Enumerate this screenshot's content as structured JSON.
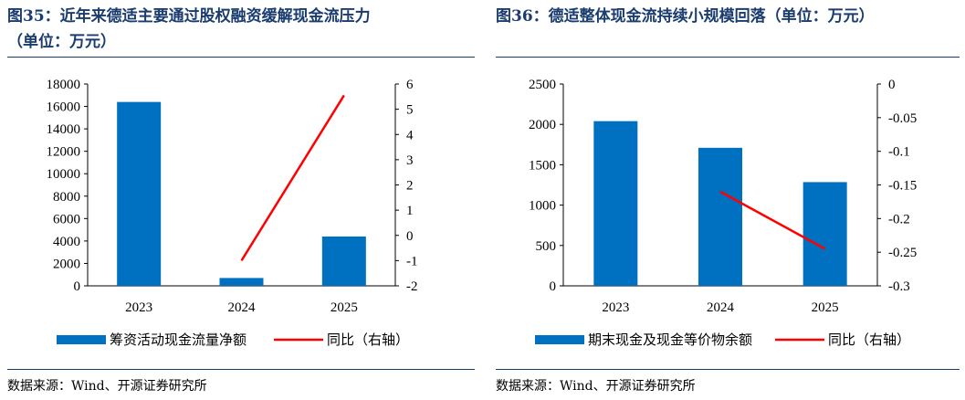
{
  "left": {
    "title_line1": "图35：近年来德适主要通过股权融资缓解现金流压力",
    "title_line2": "（单位：万元）",
    "source": "数据来源：Wind、开源证券研究所"
  },
  "right": {
    "title_line1": "图36：德适整体现金流持续小规模回落（单位：万元）",
    "source": "数据来源：Wind、开源证券研究所"
  },
  "colors": {
    "bar": "#0070c0",
    "line": "#ff0000",
    "title": "#1a3c6e"
  },
  "chart_data": [
    {
      "type": "bar",
      "categories": [
        "2023",
        "2024",
        "2025"
      ],
      "series": [
        {
          "name": "筹资活动现金流量净额",
          "type": "bar",
          "axis": "left",
          "values": [
            16400,
            700,
            4400
          ]
        },
        {
          "name": "同比（右轴）",
          "type": "line",
          "axis": "right",
          "values": [
            null,
            -1.0,
            5.55
          ]
        }
      ],
      "ylim": [
        0,
        18000
      ],
      "yticks": [
        "0",
        "2000",
        "4000",
        "6000",
        "8000",
        "10000",
        "12000",
        "14000",
        "16000",
        "18000"
      ],
      "y2lim": [
        -2,
        6
      ],
      "y2ticks": [
        "-2",
        "-1",
        "0",
        "1",
        "2",
        "3",
        "4",
        "5",
        "6"
      ],
      "legend": "bottom"
    },
    {
      "type": "bar",
      "categories": [
        "2023",
        "2024",
        "2025"
      ],
      "series": [
        {
          "name": "期末现金及现金等价物余额",
          "type": "bar",
          "axis": "left",
          "values": [
            2040,
            1710,
            1285
          ]
        },
        {
          "name": "同比（右轴）",
          "type": "line",
          "axis": "right",
          "values": [
            null,
            -0.16,
            -0.245
          ]
        }
      ],
      "ylim": [
        0,
        2500
      ],
      "yticks": [
        "0",
        "500",
        "1000",
        "1500",
        "2000",
        "2500"
      ],
      "y2lim": [
        -0.3,
        0
      ],
      "y2ticks": [
        "-0.3",
        "-0.25",
        "-0.2",
        "-0.15",
        "-0.1",
        "-0.05",
        "0"
      ],
      "legend": "bottom"
    }
  ]
}
